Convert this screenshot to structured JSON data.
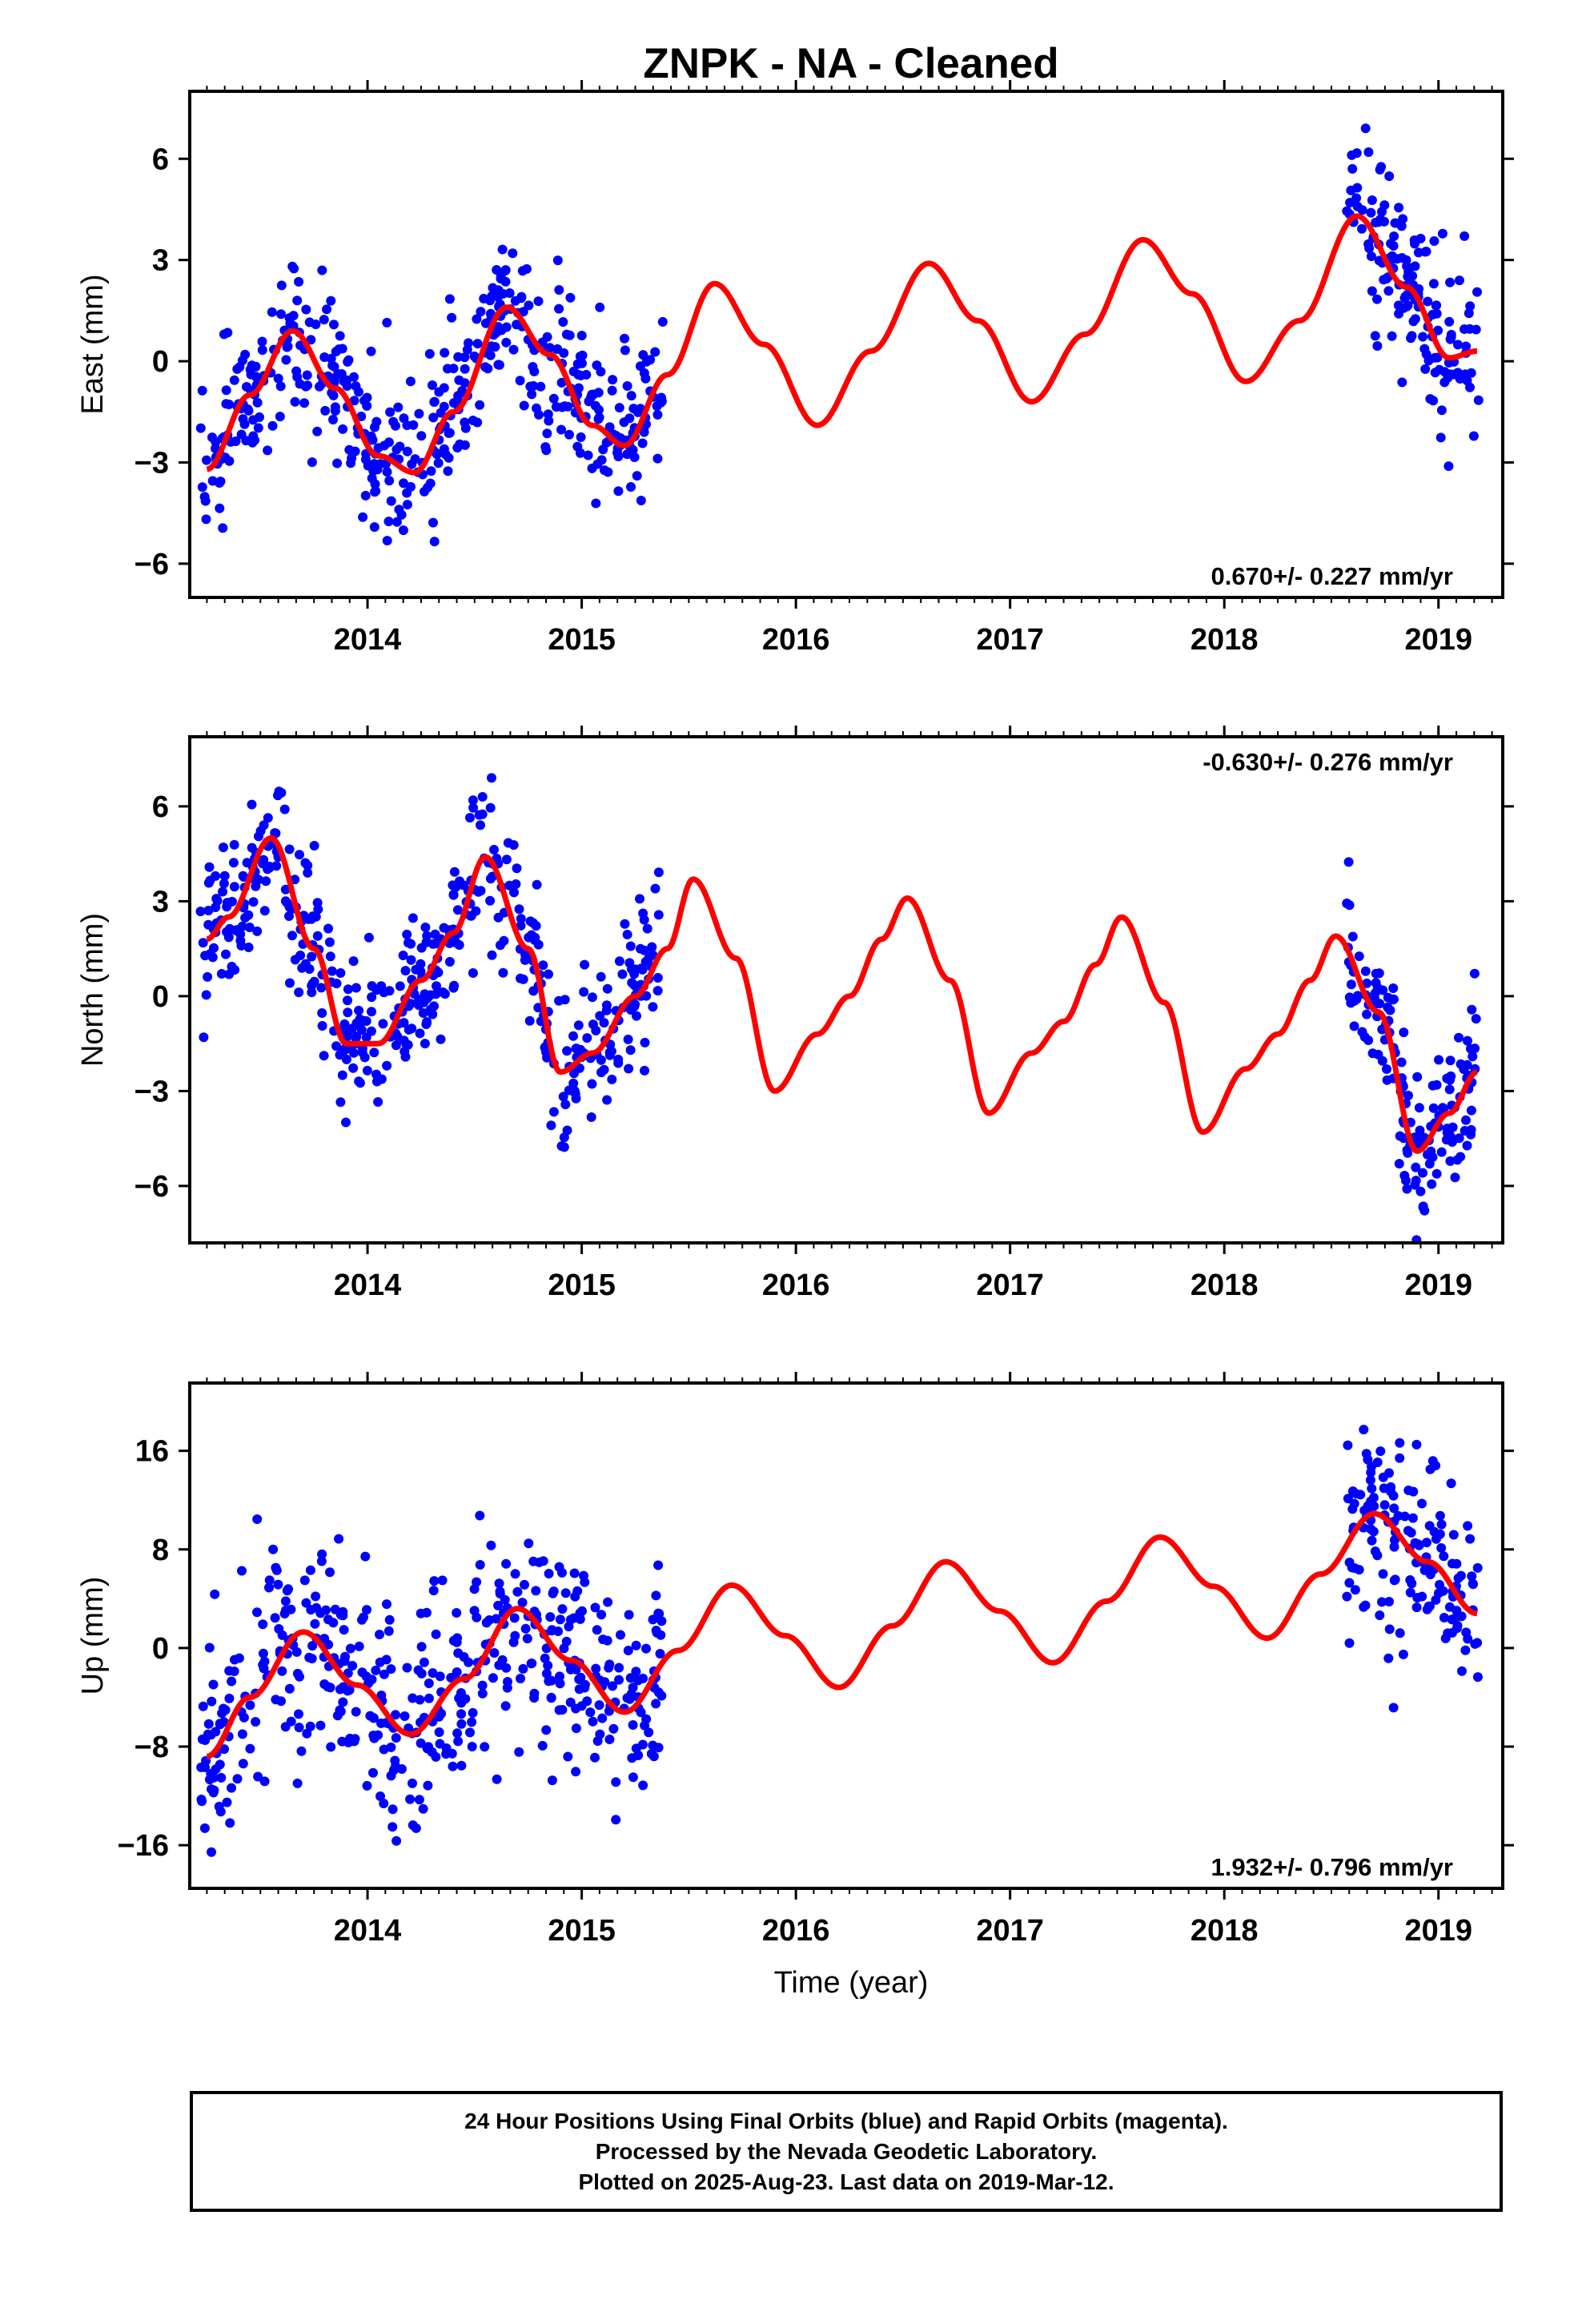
{
  "title": "ZNPK  - NA - Cleaned",
  "colors": {
    "data_points": "#0000ff",
    "model_curve": "#ff0000",
    "axes": "#000000",
    "background": "#ffffff"
  },
  "x_axis": {
    "label": "Time (year)",
    "range": [
      2013.17,
      2019.3
    ],
    "ticks": [
      "2014",
      "2015",
      "2016",
      "2017",
      "2018",
      "2019"
    ],
    "tick_values": [
      2014,
      2015,
      2016,
      2017,
      2018,
      2019
    ]
  },
  "data_gaps": {
    "data_start": 2013.22,
    "gap_start": 2015.38,
    "gap_end": 2018.57,
    "data_end": 2019.19
  },
  "footer": {
    "line1": "24 Hour Positions Using Final Orbits (blue) and Rapid Orbits (magenta).",
    "line2": "Processed by the Nevada Geodetic Laboratory.",
    "line3": "Plotted on 2025-Aug-23. Last data on 2019-Mar-12."
  },
  "chart_data": [
    {
      "type": "scatter",
      "component": "east",
      "ylabel": "East (mm)",
      "ylim": [
        -7.0,
        8.0
      ],
      "yticks": [
        -6,
        -3,
        0,
        3,
        6
      ],
      "ytick_labels": [
        "−6",
        "−3",
        "0",
        "3",
        "6"
      ],
      "rate_text": "0.670+/- 0.227 mm/yr",
      "rate_position": "bottom-right",
      "model_curve": {
        "x": [
          2013.25,
          2013.45,
          2013.65,
          2013.85,
          2014.05,
          2014.22,
          2014.4,
          2014.65,
          2014.85,
          2015.05,
          2015.2,
          2015.4,
          2015.62,
          2015.85,
          2016.1,
          2016.35,
          2016.62,
          2016.85,
          2017.1,
          2017.35,
          2017.62,
          2017.85,
          2018.1,
          2018.35,
          2018.62,
          2018.85,
          2019.05,
          2019.18
        ],
        "y": [
          -3.2,
          -1.0,
          0.9,
          -0.8,
          -2.8,
          -3.3,
          -1.5,
          1.6,
          0.2,
          -1.9,
          -2.5,
          -0.4,
          2.3,
          0.5,
          -1.9,
          0.3,
          2.9,
          1.2,
          -1.2,
          0.8,
          3.6,
          2.0,
          -0.6,
          1.2,
          4.3,
          2.2,
          0.1,
          0.3
        ]
      }
    },
    {
      "type": "scatter",
      "component": "north",
      "ylabel": "North (mm)",
      "ylim": [
        -7.8,
        8.2
      ],
      "yticks": [
        -6,
        -3,
        0,
        3,
        6
      ],
      "ytick_labels": [
        "−6",
        "−3",
        "0",
        "3",
        "6"
      ],
      "rate_text": "-0.630+/- 0.276 mm/yr",
      "rate_position": "top-right",
      "model_curve": {
        "x": [
          2013.25,
          2013.35,
          2013.55,
          2013.75,
          2013.9,
          2014.05,
          2014.25,
          2014.4,
          2014.55,
          2014.75,
          2014.9,
          2015.05,
          2015.25,
          2015.4,
          2015.52,
          2015.72,
          2015.9,
          2016.1,
          2016.25,
          2016.4,
          2016.52,
          2016.72,
          2016.9,
          2017.1,
          2017.25,
          2017.4,
          2017.52,
          2017.72,
          2017.9,
          2018.1,
          2018.25,
          2018.4,
          2018.52,
          2018.72,
          2018.9,
          2019.05,
          2019.18
        ],
        "y": [
          1.8,
          2.5,
          5.0,
          1.5,
          -1.5,
          -1.5,
          0.5,
          2.0,
          4.4,
          1.5,
          -2.4,
          -1.8,
          0.0,
          1.5,
          3.7,
          1.2,
          -3.0,
          -1.2,
          0.0,
          1.8,
          3.1,
          0.5,
          -3.7,
          -1.8,
          -0.8,
          1.0,
          2.5,
          -0.2,
          -4.3,
          -2.3,
          -1.2,
          0.5,
          1.9,
          -0.5,
          -4.9,
          -3.7,
          -2.4
        ]
      }
    },
    {
      "type": "scatter",
      "component": "up",
      "ylabel": "Up (mm)",
      "ylim": [
        -19.5,
        21.5
      ],
      "yticks": [
        -16,
        -8,
        0,
        8,
        16
      ],
      "ytick_labels": [
        "−16",
        "−8",
        "0",
        "8",
        "16"
      ],
      "rate_text": "1.932+/- 0.796 mm/yr",
      "rate_position": "bottom-right",
      "model_curve": {
        "x": [
          2013.25,
          2013.45,
          2013.7,
          2013.95,
          2014.2,
          2014.45,
          2014.7,
          2014.95,
          2015.2,
          2015.45,
          2015.7,
          2015.95,
          2016.2,
          2016.45,
          2016.7,
          2016.95,
          2017.2,
          2017.45,
          2017.7,
          2017.95,
          2018.2,
          2018.45,
          2018.7,
          2018.95,
          2019.18
        ],
        "y": [
          -8.8,
          -4.0,
          1.3,
          -3.0,
          -7.0,
          -2.5,
          3.2,
          -1.0,
          -5.2,
          -0.2,
          5.1,
          1.0,
          -3.2,
          1.8,
          7.0,
          3.0,
          -1.2,
          3.8,
          9.0,
          5.0,
          0.8,
          6.0,
          10.9,
          7.0,
          2.8
        ]
      }
    }
  ]
}
